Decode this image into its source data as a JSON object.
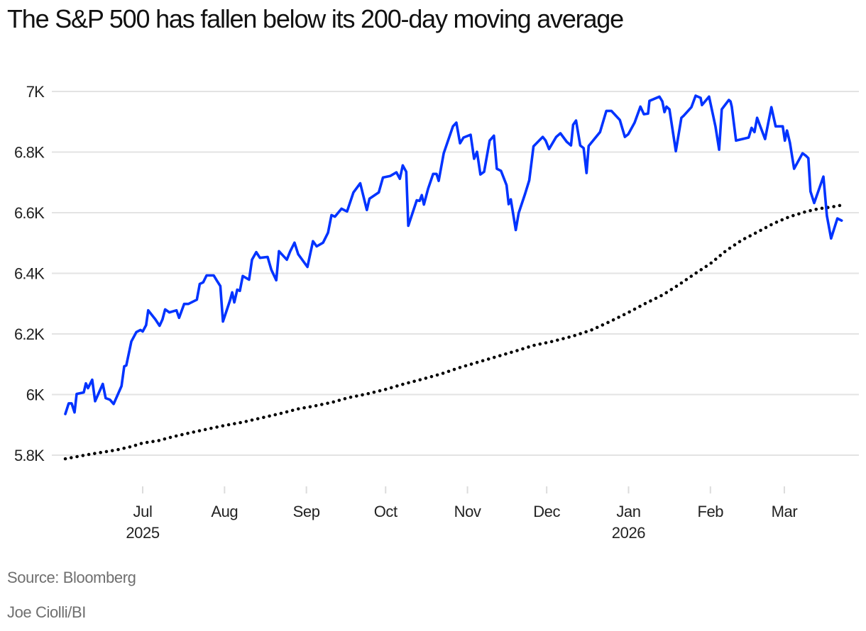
{
  "title": "The S&P 500 has fallen below its 200-day moving average",
  "source": "Source: Bloomberg",
  "credit": "Joe Ciolli/BI",
  "chart_data": {
    "type": "line",
    "title": "The S&P 500 has fallen below its 200-day moving average",
    "xlabel": "",
    "ylabel": "",
    "x_unit": "days since 2025-06-01",
    "xlim": [
      2,
      297
    ],
    "ylim": [
      5700,
      7050
    ],
    "grid": true,
    "legend": "none",
    "y_ticks": [
      {
        "value": 5800,
        "label": "5.8K"
      },
      {
        "value": 6000,
        "label": "6K"
      },
      {
        "value": 6200,
        "label": "6.2K"
      },
      {
        "value": 6400,
        "label": "6.4K"
      },
      {
        "value": 6600,
        "label": "6.6K"
      },
      {
        "value": 6800,
        "label": "6.8K"
      },
      {
        "value": 7000,
        "label": "7K"
      }
    ],
    "x_ticks": [
      {
        "day": 30,
        "label": "Jul",
        "sublabel": "2025"
      },
      {
        "day": 61,
        "label": "Aug",
        "sublabel": ""
      },
      {
        "day": 92,
        "label": "Sep",
        "sublabel": ""
      },
      {
        "day": 122,
        "label": "Oct",
        "sublabel": ""
      },
      {
        "day": 153,
        "label": "Nov",
        "sublabel": ""
      },
      {
        "day": 183,
        "label": "Dec",
        "sublabel": ""
      },
      {
        "day": 214,
        "label": "Jan",
        "sublabel": "2026"
      },
      {
        "day": 245,
        "label": "Feb",
        "sublabel": ""
      },
      {
        "day": 273,
        "label": "Mar",
        "sublabel": ""
      }
    ],
    "series": [
      {
        "name": "S&P 500",
        "color": "#0033ff",
        "style": "solid",
        "points": [
          [
            0.7,
            5936
          ],
          [
            2.0,
            5971
          ],
          [
            3.1,
            5971
          ],
          [
            4.2,
            5941
          ],
          [
            5.0,
            6002
          ],
          [
            7.7,
            6007
          ],
          [
            8.5,
            6037
          ],
          [
            9.3,
            6021
          ],
          [
            10.9,
            6049
          ],
          [
            12.0,
            5978
          ],
          [
            14.9,
            6035
          ],
          [
            16.0,
            5988
          ],
          [
            17.6,
            5983
          ],
          [
            19.0,
            5969
          ],
          [
            22.0,
            6028
          ],
          [
            23.0,
            6093
          ],
          [
            23.8,
            6096
          ],
          [
            25.7,
            6175
          ],
          [
            27.6,
            6206
          ],
          [
            29.2,
            6213
          ],
          [
            30.0,
            6208
          ],
          [
            31.3,
            6229
          ],
          [
            32.1,
            6278
          ],
          [
            34.8,
            6248
          ],
          [
            36.4,
            6227
          ],
          [
            37.5,
            6248
          ],
          [
            38.5,
            6281
          ],
          [
            40.1,
            6271
          ],
          [
            42.8,
            6278
          ],
          [
            43.8,
            6253
          ],
          [
            45.7,
            6299
          ],
          [
            47.3,
            6299
          ],
          [
            50.5,
            6313
          ],
          [
            51.6,
            6365
          ],
          [
            52.9,
            6370
          ],
          [
            54.2,
            6393
          ],
          [
            56.9,
            6393
          ],
          [
            58.0,
            6377
          ],
          [
            59.4,
            6358
          ],
          [
            60.4,
            6241
          ],
          [
            63.1,
            6311
          ],
          [
            63.9,
            6337
          ],
          [
            64.7,
            6304
          ],
          [
            65.8,
            6346
          ],
          [
            66.8,
            6342
          ],
          [
            67.9,
            6391
          ],
          [
            70.3,
            6379
          ],
          [
            71.4,
            6445
          ],
          [
            73.0,
            6470
          ],
          [
            74.4,
            6451
          ],
          [
            77.3,
            6454
          ],
          [
            78.7,
            6412
          ],
          [
            80.6,
            6377
          ],
          [
            81.6,
            6473
          ],
          [
            84.6,
            6445
          ],
          [
            85.9,
            6473
          ],
          [
            87.5,
            6501
          ],
          [
            88.9,
            6463
          ],
          [
            92.4,
            6421
          ],
          [
            94.5,
            6506
          ],
          [
            95.9,
            6489
          ],
          [
            98.3,
            6501
          ],
          [
            100.2,
            6534
          ],
          [
            101.5,
            6592
          ],
          [
            102.8,
            6587
          ],
          [
            105.3,
            6613
          ],
          [
            107.4,
            6604
          ],
          [
            109.8,
            6667
          ],
          [
            112.4,
            6697
          ],
          [
            113.5,
            6658
          ],
          [
            114.9,
            6609
          ],
          [
            115.9,
            6646
          ],
          [
            119.4,
            6667
          ],
          [
            121.0,
            6716
          ],
          [
            123.7,
            6721
          ],
          [
            126.1,
            6733
          ],
          [
            127.4,
            6712
          ],
          [
            128.5,
            6756
          ],
          [
            129.8,
            6735
          ],
          [
            130.6,
            6557
          ],
          [
            133.8,
            6641
          ],
          [
            134.9,
            6639
          ],
          [
            135.7,
            6658
          ],
          [
            136.5,
            6627
          ],
          [
            138.1,
            6679
          ],
          [
            140.0,
            6728
          ],
          [
            141.3,
            6728
          ],
          [
            142.1,
            6705
          ],
          [
            144.0,
            6796
          ],
          [
            147.5,
            6885
          ],
          [
            148.8,
            6897
          ],
          [
            150.2,
            6829
          ],
          [
            151.5,
            6848
          ],
          [
            154.2,
            6857
          ],
          [
            155.5,
            6778
          ],
          [
            156.6,
            6801
          ],
          [
            157.9,
            6726
          ],
          [
            159.3,
            6735
          ],
          [
            161.4,
            6838
          ],
          [
            163.0,
            6854
          ],
          [
            164.1,
            6745
          ],
          [
            165.7,
            6738
          ],
          [
            167.8,
            6691
          ],
          [
            168.6,
            6628
          ],
          [
            169.4,
            6644
          ],
          [
            171.3,
            6543
          ],
          [
            172.4,
            6599
          ],
          [
            174.8,
            6662
          ],
          [
            176.4,
            6707
          ],
          [
            178.0,
            6819
          ],
          [
            181.5,
            6850
          ],
          [
            182.6,
            6838
          ],
          [
            183.9,
            6810
          ],
          [
            186.6,
            6850
          ],
          [
            188.2,
            6862
          ],
          [
            190.6,
            6834
          ],
          [
            192.2,
            6822
          ],
          [
            193.0,
            6890
          ],
          [
            194.1,
            6904
          ],
          [
            195.7,
            6822
          ],
          [
            197.0,
            6813
          ],
          [
            198.1,
            6731
          ],
          [
            198.9,
            6820
          ],
          [
            203.2,
            6866
          ],
          [
            205.6,
            6936
          ],
          [
            207.5,
            6936
          ],
          [
            210.7,
            6906
          ],
          [
            212.6,
            6850
          ],
          [
            213.9,
            6859
          ],
          [
            216.3,
            6897
          ],
          [
            218.5,
            6950
          ],
          [
            219.8,
            6925
          ],
          [
            221.4,
            6927
          ],
          [
            221.9,
            6969
          ],
          [
            225.7,
            6983
          ],
          [
            226.8,
            6967
          ],
          [
            227.6,
            6932
          ],
          [
            228.4,
            6950
          ],
          [
            229.5,
            6941
          ],
          [
            231.9,
            6803
          ],
          [
            234.0,
            6913
          ],
          [
            234.9,
            6920
          ],
          [
            237.8,
            6948
          ],
          [
            239.4,
            6986
          ],
          [
            241.3,
            6979
          ],
          [
            241.8,
            6955
          ],
          [
            244.5,
            6983
          ],
          [
            246.9,
            6885
          ],
          [
            248.3,
            6808
          ],
          [
            249.3,
            6941
          ],
          [
            252.0,
            6972
          ],
          [
            252.6,
            6967
          ],
          [
            253.1,
            6950
          ],
          [
            254.7,
            6838
          ],
          [
            259.5,
            6848
          ],
          [
            260.6,
            6880
          ],
          [
            261.7,
            6866
          ],
          [
            262.7,
            6913
          ],
          [
            265.7,
            6843
          ],
          [
            268.1,
            6948
          ],
          [
            269.7,
            6885
          ],
          [
            272.4,
            6885
          ],
          [
            273.2,
            6838
          ],
          [
            274.0,
            6871
          ],
          [
            275.1,
            6831
          ],
          [
            276.7,
            6745
          ],
          [
            279.9,
            6796
          ],
          [
            281.3,
            6787
          ],
          [
            282.1,
            6780
          ],
          [
            282.9,
            6670
          ],
          [
            284.3,
            6632
          ],
          [
            287.8,
            6719
          ],
          [
            289.1,
            6590
          ],
          [
            290.7,
            6515
          ],
          [
            293.1,
            6581
          ],
          [
            294.7,
            6574
          ]
        ]
      },
      {
        "name": "200-day moving average",
        "color": "#000000",
        "style": "dotted",
        "points": [
          [
            0.7,
            5788
          ],
          [
            10.0,
            5803
          ],
          [
            20.0,
            5817
          ],
          [
            26.0,
            5829
          ],
          [
            30.0,
            5840
          ],
          [
            36.0,
            5848
          ],
          [
            41.0,
            5860
          ],
          [
            48.0,
            5874
          ],
          [
            55.0,
            5887
          ],
          [
            61.0,
            5898
          ],
          [
            68.0,
            5909
          ],
          [
            75.0,
            5923
          ],
          [
            82.0,
            5937
          ],
          [
            89.0,
            5953
          ],
          [
            95.0,
            5962
          ],
          [
            102.0,
            5975
          ],
          [
            108.0,
            5990
          ],
          [
            115.0,
            6002
          ],
          [
            122.0,
            6017
          ],
          [
            129.0,
            6035
          ],
          [
            136.0,
            6051
          ],
          [
            143.0,
            6068
          ],
          [
            150.0,
            6089
          ],
          [
            157.0,
            6107
          ],
          [
            164.0,
            6125
          ],
          [
            171.0,
            6143
          ],
          [
            178.0,
            6162
          ],
          [
            185.0,
            6175
          ],
          [
            193.0,
            6193
          ],
          [
            200.0,
            6213
          ],
          [
            207.0,
            6241
          ],
          [
            214.0,
            6271
          ],
          [
            220.0,
            6299
          ],
          [
            227.0,
            6329
          ],
          [
            233.0,
            6362
          ],
          [
            239.0,
            6398
          ],
          [
            245.0,
            6432
          ],
          [
            251.0,
            6475
          ],
          [
            257.0,
            6510
          ],
          [
            263.0,
            6537
          ],
          [
            269.0,
            6565
          ],
          [
            275.0,
            6587
          ],
          [
            281.0,
            6603
          ],
          [
            286.0,
            6613
          ],
          [
            291.0,
            6619
          ],
          [
            294.7,
            6625
          ]
        ]
      }
    ]
  }
}
